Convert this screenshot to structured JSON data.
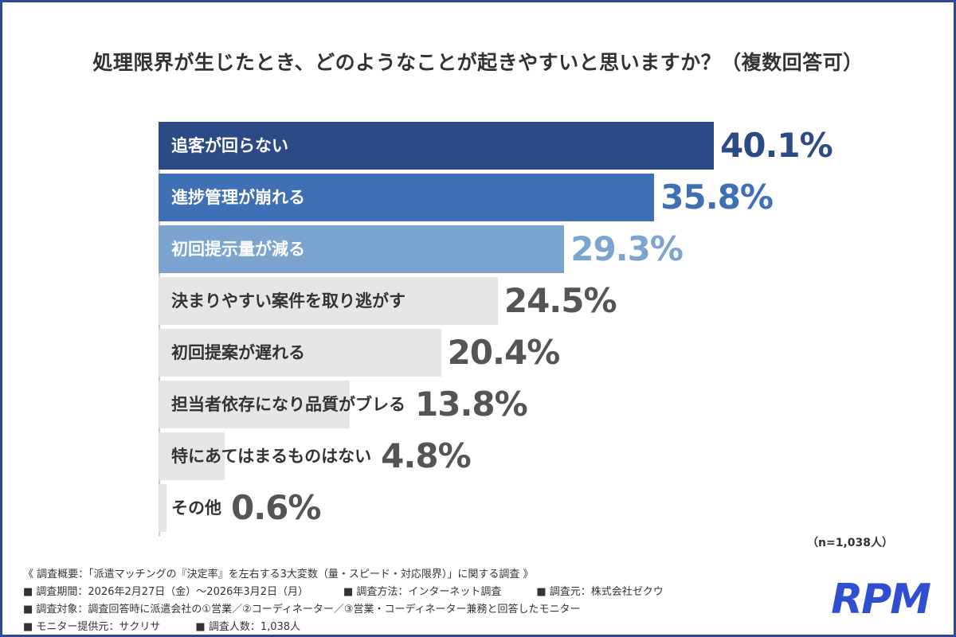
{
  "title": "処理限界が生じたとき、どのようなことが起きやすいと思いますか？（複数回答可）",
  "chart_data": {
    "type": "bar",
    "orientation": "horizontal",
    "categories": [
      "追客が回らない",
      "進捗管理が崩れる",
      "初回提示量が減る",
      "決まりやすい案件を取り逃がす",
      "初回提案が遅れる",
      "担当者依存になり品質がブレる",
      "特にあてはまるものはない",
      "その他"
    ],
    "values": [
      40.1,
      35.8,
      29.3,
      24.5,
      20.4,
      13.8,
      4.8,
      0.6
    ],
    "value_labels": [
      "40.1%",
      "35.8%",
      "29.3%",
      "24.5%",
      "20.4%",
      "13.8%",
      "4.8%",
      "0.6%"
    ],
    "xlim": [
      0,
      52
    ],
    "bar_colors": [
      "#2c4a86",
      "#3f6fb5",
      "#7ba4d1",
      "#e6e6e9",
      "#e6e6e9",
      "#e6e6e9",
      "#e6e6e9",
      "#e6e6e9"
    ],
    "label_colors": [
      "#ffffff",
      "#ffffff",
      "#ffffff",
      "#333333",
      "#333333",
      "#333333",
      "#333333",
      "#333333"
    ],
    "value_colors": [
      "#2c4a86",
      "#3f6fb5",
      "#7ba4d1",
      "#555555",
      "#555555",
      "#555555",
      "#555555",
      "#555555"
    ]
  },
  "sample_size": "（n=1,038人）",
  "notes": {
    "header": "《 調査概要：「派遣マッチングの『決定率』を左右する3大変数（量・スピード・対応限界）」に関する調査 》",
    "period": "■ 調査期間：2026年2月27日（金）～2026年3月2日（月）",
    "method": "■ 調査方法：インターネット調査",
    "source": "■ 調査元：株式会社ゼクウ",
    "target": "■ 調査対象：調査回答時に派遣会社の①営業／②コーディネーター／③営業・コーディネーター兼務と回答したモニター",
    "provider": "■ モニター提供元：サクリサ",
    "count": "■ 調査人数：1,038人"
  },
  "logo_text": "RPM"
}
